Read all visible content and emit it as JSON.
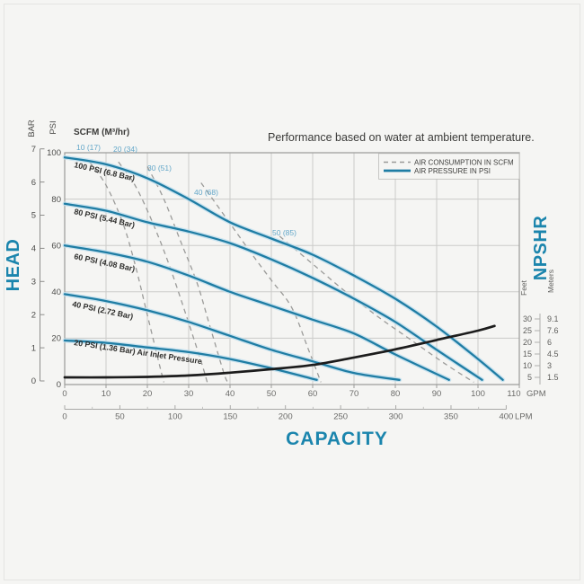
{
  "colors": {
    "background": "#f5f5f3",
    "grid": "#cbcbc9",
    "plot_border": "#9a9a98",
    "pressure_curve": "#1f7da4",
    "pressure_halo": "#bfdfed",
    "consumption_dash": "#9b9b99",
    "npshr_curve": "#1c1c1c",
    "accent_blue": "#1b85ad",
    "scfm_value_blue": "#63a7c9",
    "axis_text": "#4c4c4a",
    "tick_text": "#6b6b69",
    "curve_label_text": "#2e2e2c",
    "title_text": "#3a3a38"
  },
  "title": "Performance based on water at ambient temperature.",
  "legend": {
    "items": [
      {
        "label": "AIR CONSUMPTION IN SCFM",
        "style": "dashed"
      },
      {
        "label": "AIR PRESSURE IN PSI",
        "style": "solid"
      }
    ]
  },
  "labels": {
    "head": "HEAD",
    "capacity": "CAPACITY",
    "npshr": "NPSHR",
    "bar": "BAR",
    "psi": "PSI",
    "scfm_header": "SCFM (M³/hr)",
    "feet": "Feet",
    "meters": "Meters",
    "gpm_unit": "GPM",
    "lpm_unit": "LPM"
  },
  "chart_data": {
    "type": "line",
    "title": "Performance based on water at ambient temperature.",
    "xlabel": "CAPACITY",
    "ylabel_left": "HEAD",
    "ylabel_right": "NPSHR",
    "grid": true,
    "x_axis_gpm": {
      "unit": "GPM",
      "range": [
        0,
        110
      ],
      "ticks": [
        0,
        10,
        20,
        30,
        40,
        50,
        60,
        70,
        80,
        90,
        100,
        110
      ]
    },
    "x_axis_lpm": {
      "unit": "LPM",
      "range": [
        0,
        400
      ],
      "ticks": [
        0,
        50,
        100,
        150,
        200,
        250,
        300,
        350,
        400
      ]
    },
    "y_axis_psi": {
      "unit": "PSI",
      "range": [
        0,
        100
      ],
      "ticks": [
        0,
        20,
        40,
        60,
        80,
        100
      ]
    },
    "y_axis_bar": {
      "unit": "BAR",
      "range": [
        0,
        7
      ],
      "ticks": [
        0,
        1,
        2,
        3,
        4,
        5,
        6,
        7
      ]
    },
    "y_axis_npshr": {
      "feet_ticks": [
        30,
        25,
        20,
        15,
        10,
        5
      ],
      "meters_ticks": [
        "9.1",
        "7.6",
        "6",
        "4.5",
        "3",
        "1.5"
      ]
    },
    "air_pressure_curves": [
      {
        "label": "100 PSI (6.8 Bar)",
        "points": [
          [
            0,
            98
          ],
          [
            10,
            95
          ],
          [
            20,
            89
          ],
          [
            30,
            80
          ],
          [
            40,
            70
          ],
          [
            50,
            63
          ],
          [
            60,
            56
          ],
          [
            70,
            47
          ],
          [
            80,
            37
          ],
          [
            90,
            25
          ],
          [
            100,
            11
          ],
          [
            106,
            2
          ]
        ]
      },
      {
        "label": "80 PSI (5.44 Bar)",
        "points": [
          [
            0,
            78
          ],
          [
            10,
            75
          ],
          [
            20,
            70
          ],
          [
            30,
            66
          ],
          [
            40,
            61
          ],
          [
            50,
            54
          ],
          [
            60,
            46
          ],
          [
            70,
            37
          ],
          [
            80,
            27
          ],
          [
            90,
            15
          ],
          [
            101,
            2
          ]
        ]
      },
      {
        "label": "60 PSI (4.08 Bar)",
        "points": [
          [
            0,
            60
          ],
          [
            10,
            57
          ],
          [
            20,
            53
          ],
          [
            30,
            47
          ],
          [
            40,
            40
          ],
          [
            50,
            34
          ],
          [
            60,
            28
          ],
          [
            70,
            22
          ],
          [
            80,
            13
          ],
          [
            93,
            2
          ]
        ]
      },
      {
        "label": "40 PSI (2.72 Bar)",
        "points": [
          [
            0,
            39
          ],
          [
            10,
            36
          ],
          [
            20,
            32
          ],
          [
            30,
            27
          ],
          [
            40,
            21
          ],
          [
            50,
            15
          ],
          [
            60,
            10
          ],
          [
            70,
            5
          ],
          [
            81,
            2
          ]
        ]
      },
      {
        "label": "20 PSI (1.36 Bar) Air Inlet Pressure",
        "points": [
          [
            0,
            19
          ],
          [
            10,
            18
          ],
          [
            20,
            16
          ],
          [
            30,
            14
          ],
          [
            40,
            11
          ],
          [
            50,
            7
          ],
          [
            61,
            2
          ]
        ]
      }
    ],
    "air_consumption_lines": [
      {
        "label": "10 (17)",
        "points": [
          [
            6,
            96
          ],
          [
            10,
            86
          ],
          [
            14,
            70
          ],
          [
            17,
            52
          ],
          [
            20,
            30
          ],
          [
            23,
            8
          ],
          [
            24,
            1
          ]
        ]
      },
      {
        "label": "20 (34)",
        "points": [
          [
            13,
            96
          ],
          [
            17,
            86
          ],
          [
            21,
            71
          ],
          [
            25,
            53
          ],
          [
            29,
            32
          ],
          [
            33,
            10
          ],
          [
            34.5,
            1
          ]
        ]
      },
      {
        "label": "30 (51)",
        "points": [
          [
            20,
            94
          ],
          [
            24,
            80
          ],
          [
            28,
            62
          ],
          [
            32,
            44
          ],
          [
            35,
            26
          ],
          [
            38.5,
            5
          ],
          [
            39.5,
            1
          ]
        ]
      },
      {
        "label": "40 (68)",
        "points": [
          [
            33,
            87
          ],
          [
            39,
            72
          ],
          [
            45,
            57
          ],
          [
            50,
            45
          ],
          [
            55,
            33
          ],
          [
            59,
            15
          ],
          [
            62,
            1
          ]
        ]
      },
      {
        "label": "50 (85)",
        "points": [
          [
            52,
            64
          ],
          [
            60,
            52
          ],
          [
            68,
            40
          ],
          [
            76,
            29
          ],
          [
            84,
            19
          ],
          [
            92,
            9
          ],
          [
            99,
            1
          ]
        ]
      }
    ],
    "npshr_curve": {
      "x_unit": "GPM",
      "y_unit": "Feet",
      "points": [
        [
          0,
          5
        ],
        [
          10,
          5
        ],
        [
          20,
          5.2
        ],
        [
          30,
          5.8
        ],
        [
          40,
          7
        ],
        [
          50,
          8.5
        ],
        [
          60,
          10.3
        ],
        [
          70,
          13.5
        ],
        [
          80,
          17
        ],
        [
          90,
          21
        ],
        [
          100,
          25
        ],
        [
          104,
          27
        ]
      ]
    }
  }
}
